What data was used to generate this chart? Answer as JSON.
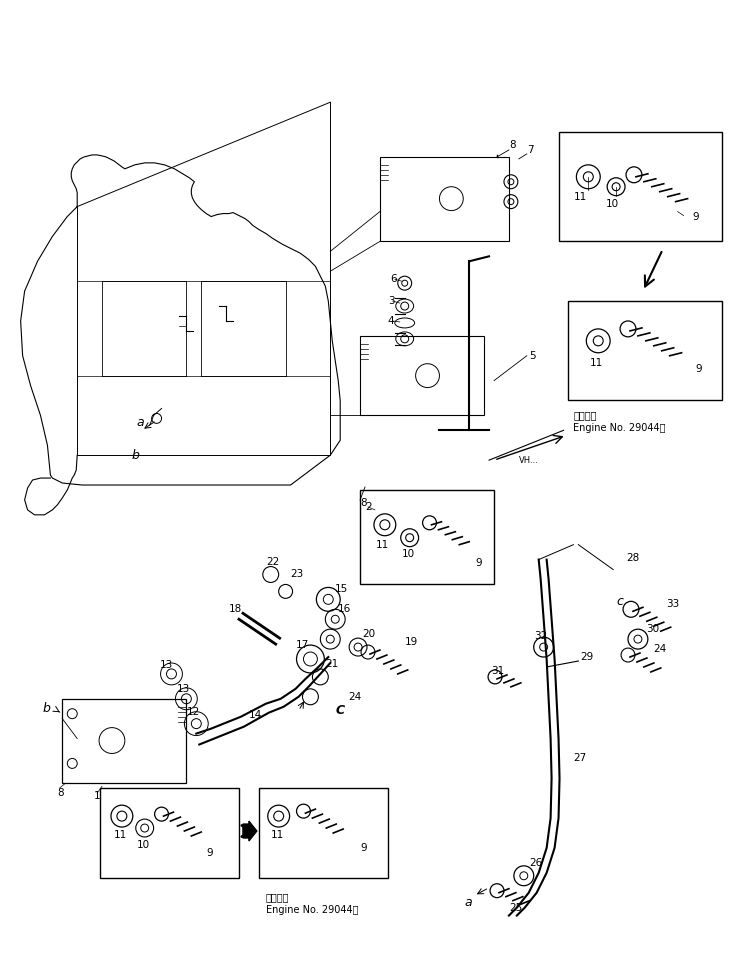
{
  "bg_color": "#ffffff",
  "line_color": "#000000",
  "figsize": [
    7.34,
    9.74
  ],
  "dpi": 100,
  "engine_note_top": "適用号機",
  "engine_note_top2": "Engine No. 29044～",
  "engine_note_bot": "適用号機",
  "engine_note_bot2": "Engine No. 29044～"
}
